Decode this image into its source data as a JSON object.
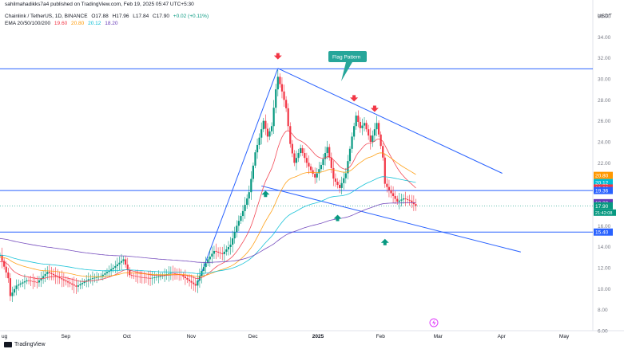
{
  "header": {
    "publisher": "sahilmahadikks7a4 published on TradingView.com, Feb 19, 2025 05:47 UTC+5:30",
    "symbol": "Chainlink / TetherUS, 1D, BINANCE",
    "ohlc": {
      "o": "O17.88",
      "h": "H17.96",
      "l": "L17.84",
      "c": "C17.90",
      "chg": "+0.02 (+0.11%)"
    },
    "ema_label": "EMA 20/50/100/200",
    "ema_values": {
      "ema20": "19.60",
      "ema50": "20.80",
      "ema100": "20.12",
      "ema200": "18.20"
    },
    "currency": "USDT"
  },
  "footer": {
    "brand": "TradingView"
  },
  "annotation": {
    "text": "Flag Pattern"
  },
  "colors": {
    "up": "#089981",
    "down": "#f23645",
    "ema20": "#f23645",
    "ema50": "#ff9800",
    "ema100": "#00bcd4",
    "ema200": "#673ab7",
    "trend": "#2962ff",
    "price": "#089981"
  },
  "chart_data": {
    "type": "candlestick",
    "title": "Chainlink / TetherUS, 1D, BINANCE",
    "ylim": [
      6.0,
      36.0
    ],
    "y_ticks": [
      "36.00",
      "34.00",
      "32.00",
      "30.00",
      "28.00",
      "26.00",
      "24.00",
      "22.00",
      "20.00",
      "18.00",
      "16.00",
      "14.00",
      "12.00",
      "10.00",
      "8.00",
      "6.00"
    ],
    "x_ticks": [
      {
        "label": "ug",
        "date": "2024-08-01"
      },
      {
        "label": "Sep",
        "date": "2024-09-01"
      },
      {
        "label": "Oct",
        "date": "2024-10-01"
      },
      {
        "label": "Nov",
        "date": "2024-11-01"
      },
      {
        "label": "Dec",
        "date": "2024-12-01"
      },
      {
        "label": "2025",
        "date": "2025-01-01"
      },
      {
        "label": "Feb",
        "date": "2025-02-01"
      },
      {
        "label": "Mar",
        "date": "2025-03-01"
      },
      {
        "label": "Apr",
        "date": "2025-04-01"
      },
      {
        "label": "May",
        "date": "2025-05-01"
      }
    ],
    "x_range": [
      "2024-07-31",
      "2025-05-15"
    ],
    "price_closes": [
      {
        "date": "2024-07-31",
        "close": 13.2
      },
      {
        "date": "2024-08-04",
        "close": 11.0
      },
      {
        "date": "2024-08-05",
        "close": 9.3
      },
      {
        "date": "2024-08-08",
        "close": 10.3
      },
      {
        "date": "2024-08-13",
        "close": 10.8
      },
      {
        "date": "2024-08-18",
        "close": 10.6
      },
      {
        "date": "2024-08-23",
        "close": 11.6
      },
      {
        "date": "2024-08-27",
        "close": 11.2
      },
      {
        "date": "2024-08-31",
        "close": 10.8
      },
      {
        "date": "2024-09-06",
        "close": 10.2
      },
      {
        "date": "2024-09-12",
        "close": 10.9
      },
      {
        "date": "2024-09-18",
        "close": 11.2
      },
      {
        "date": "2024-09-24",
        "close": 12.0
      },
      {
        "date": "2024-09-29",
        "close": 12.8
      },
      {
        "date": "2024-10-02",
        "close": 11.3
      },
      {
        "date": "2024-10-07",
        "close": 11.1
      },
      {
        "date": "2024-10-12",
        "close": 11.0
      },
      {
        "date": "2024-10-17",
        "close": 11.2
      },
      {
        "date": "2024-10-22",
        "close": 11.5
      },
      {
        "date": "2024-10-27",
        "close": 11.3
      },
      {
        "date": "2024-11-03",
        "close": 10.3
      },
      {
        "date": "2024-11-06",
        "close": 11.7
      },
      {
        "date": "2024-11-09",
        "close": 12.8
      },
      {
        "date": "2024-11-12",
        "close": 13.6
      },
      {
        "date": "2024-11-16",
        "close": 13.3
      },
      {
        "date": "2024-11-20",
        "close": 14.2
      },
      {
        "date": "2024-11-23",
        "close": 16.0
      },
      {
        "date": "2024-11-26",
        "close": 17.4
      },
      {
        "date": "2024-11-29",
        "close": 19.2
      },
      {
        "date": "2024-12-02",
        "close": 23.0
      },
      {
        "date": "2024-12-04",
        "close": 24.4
      },
      {
        "date": "2024-12-06",
        "close": 26.0
      },
      {
        "date": "2024-12-08",
        "close": 24.5
      },
      {
        "date": "2024-12-10",
        "close": 25.5
      },
      {
        "date": "2024-12-12",
        "close": 29.0
      },
      {
        "date": "2024-12-13",
        "close": 30.2
      },
      {
        "date": "2024-12-15",
        "close": 28.8
      },
      {
        "date": "2024-12-17",
        "close": 27.2
      },
      {
        "date": "2024-12-19",
        "close": 23.8
      },
      {
        "date": "2024-12-21",
        "close": 22.0
      },
      {
        "date": "2024-12-24",
        "close": 23.4
      },
      {
        "date": "2024-12-27",
        "close": 22.0
      },
      {
        "date": "2024-12-31",
        "close": 20.6
      },
      {
        "date": "2025-01-03",
        "close": 21.8
      },
      {
        "date": "2025-01-06",
        "close": 23.5
      },
      {
        "date": "2025-01-09",
        "close": 20.5
      },
      {
        "date": "2025-01-12",
        "close": 19.6
      },
      {
        "date": "2025-01-15",
        "close": 21.0
      },
      {
        "date": "2025-01-18",
        "close": 24.5
      },
      {
        "date": "2025-01-20",
        "close": 26.5
      },
      {
        "date": "2025-01-22",
        "close": 25.3
      },
      {
        "date": "2025-01-24",
        "close": 25.8
      },
      {
        "date": "2025-01-27",
        "close": 24.0
      },
      {
        "date": "2025-01-30",
        "close": 25.8
      },
      {
        "date": "2025-02-02",
        "close": 22.5
      },
      {
        "date": "2025-02-03",
        "close": 20.0
      },
      {
        "date": "2025-02-06",
        "close": 19.1
      },
      {
        "date": "2025-02-09",
        "close": 18.3
      },
      {
        "date": "2025-02-12",
        "close": 18.6
      },
      {
        "date": "2025-02-15",
        "close": 18.4
      },
      {
        "date": "2025-02-18",
        "close": 17.9
      }
    ],
    "horizontal_levels": [
      {
        "value": 30.96,
        "label": "30.96"
      },
      {
        "value": 19.36,
        "label": "19.36"
      },
      {
        "value": 15.4,
        "label": "15.40"
      }
    ],
    "series": [
      {
        "name": "EMA 20",
        "last": 19.6
      },
      {
        "name": "EMA 50",
        "last": 20.8
      },
      {
        "name": "EMA 100",
        "last": 20.12
      },
      {
        "name": "EMA 200",
        "last": 18.2
      }
    ],
    "price_tags": [
      {
        "label": "20.80",
        "value": 20.8,
        "color": "#ff9800"
      },
      {
        "label": "20.12",
        "value": 20.12,
        "color": "#00bcd4"
      },
      {
        "label": "19.60",
        "value": 19.6,
        "color": "#f23645"
      },
      {
        "label": "19.36",
        "value": 19.36,
        "color": "#2962ff"
      },
      {
        "label": "18.20",
        "value": 18.2,
        "color": "#673ab7"
      },
      {
        "label": "17.90",
        "value": 17.9,
        "color": "#089981",
        "sub": "21:42:08"
      },
      {
        "label": "16.00",
        "value": 16.0,
        "color": "none"
      },
      {
        "label": "15.40",
        "value": 15.4,
        "color": "#2962ff"
      }
    ],
    "trendlines": [
      {
        "from": {
          "date": "2024-11-04",
          "value": 10.5
        },
        "to": {
          "date": "2024-12-13",
          "value": 31.0
        }
      },
      {
        "from": {
          "date": "2024-12-13",
          "value": 31.0
        },
        "to": {
          "date": "2025-04-01",
          "value": 21.0
        }
      },
      {
        "from": {
          "date": "2024-12-05",
          "value": 19.8
        },
        "to": {
          "date": "2025-04-10",
          "value": 13.5
        }
      }
    ],
    "markers": [
      {
        "date": "2024-12-13",
        "value": 32.0,
        "kind": "down"
      },
      {
        "date": "2025-01-19",
        "value": 28.0,
        "kind": "down"
      },
      {
        "date": "2025-01-29",
        "value": 27.0,
        "kind": "down"
      },
      {
        "date": "2024-12-07",
        "value": 19.2,
        "kind": "up"
      },
      {
        "date": "2025-01-11",
        "value": 16.9,
        "kind": "up"
      },
      {
        "date": "2025-02-03",
        "value": 14.6,
        "kind": "up"
      }
    ]
  }
}
